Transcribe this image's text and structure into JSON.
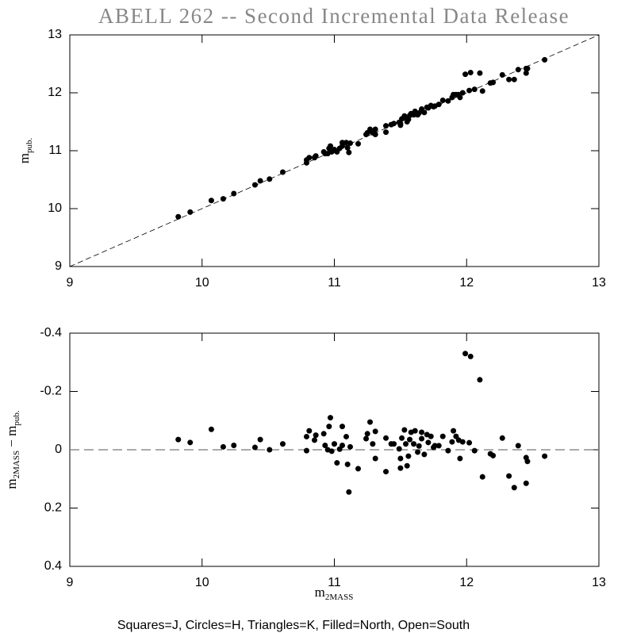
{
  "chart_data": [
    {
      "type": "scatter",
      "title": "ABELL 262 -- Second Incremental Data Release",
      "y_label": [
        "m",
        "pub."
      ],
      "xlim": [
        9,
        13
      ],
      "xticks": [
        9,
        10,
        11,
        12,
        13
      ],
      "ylim": [
        9,
        13
      ],
      "yticks": [
        9,
        10,
        11,
        12,
        13
      ],
      "color": "#000000",
      "reference_line": {
        "x": [
          9,
          13
        ],
        "y": [
          9,
          13
        ]
      },
      "x": [
        9.82,
        9.91,
        10.07,
        10.16,
        10.24,
        10.4,
        10.44,
        10.51,
        10.61,
        10.79,
        10.79,
        10.81,
        10.85,
        10.86,
        10.92,
        10.93,
        10.95,
        10.96,
        10.97,
        10.98,
        11.0,
        11.02,
        11.04,
        11.06,
        11.06,
        11.09,
        11.1,
        11.11,
        11.12,
        11.18,
        11.24,
        11.25,
        11.27,
        11.29,
        11.31,
        11.31,
        11.39,
        11.39,
        11.43,
        11.45,
        11.49,
        11.5,
        11.5,
        11.51,
        11.53,
        11.54,
        11.55,
        11.56,
        11.57,
        11.58,
        11.6,
        11.61,
        11.63,
        11.64,
        11.66,
        11.66,
        11.68,
        11.7,
        11.71,
        11.73,
        11.75,
        11.76,
        11.79,
        11.82,
        11.86,
        11.89,
        11.9,
        11.92,
        11.94,
        11.95,
        11.97,
        11.99,
        12.02,
        12.03,
        12.06,
        12.1,
        12.12,
        12.18,
        12.2,
        12.27,
        12.32,
        12.36,
        12.39,
        12.45,
        12.46,
        12.45,
        12.59
      ],
      "values": [
        9.86,
        9.94,
        10.14,
        10.17,
        10.26,
        10.41,
        10.48,
        10.51,
        10.63,
        10.79,
        10.84,
        10.88,
        10.88,
        10.91,
        10.98,
        10.95,
        10.95,
        11.04,
        11.08,
        10.98,
        11.02,
        10.98,
        11.04,
        11.08,
        11.14,
        11.14,
        11.05,
        10.97,
        11.13,
        11.12,
        11.28,
        11.31,
        11.37,
        11.31,
        11.37,
        11.28,
        11.43,
        11.32,
        11.45,
        11.47,
        11.49,
        11.47,
        11.44,
        11.55,
        11.6,
        11.56,
        11.5,
        11.54,
        11.61,
        11.64,
        11.62,
        11.68,
        11.62,
        11.65,
        11.7,
        11.72,
        11.66,
        11.75,
        11.74,
        11.78,
        11.76,
        11.77,
        11.8,
        11.87,
        11.86,
        11.92,
        11.97,
        11.97,
        11.97,
        11.92,
        12.0,
        12.32,
        12.04,
        12.35,
        12.06,
        12.34,
        12.03,
        12.17,
        12.18,
        12.31,
        12.23,
        12.23,
        12.4,
        12.42,
        12.42,
        12.34,
        12.57
      ]
    },
    {
      "type": "scatter",
      "y_label": [
        "m",
        "2MASS",
        " − m",
        "pub."
      ],
      "x_label": [
        "m",
        "2MASS"
      ],
      "xlim": [
        9,
        13
      ],
      "xticks": [
        9,
        10,
        11,
        12,
        13
      ],
      "ylim": [
        0.4,
        -0.4
      ],
      "yticks": [
        -0.4,
        -0.2,
        0,
        0.2,
        0.4
      ],
      "color": "#000000",
      "reference_line": {
        "x": [
          9,
          13
        ],
        "y": [
          0,
          0
        ]
      },
      "x": [
        9.82,
        9.91,
        10.07,
        10.16,
        10.24,
        10.4,
        10.44,
        10.51,
        10.61,
        10.79,
        10.79,
        10.81,
        10.85,
        10.86,
        10.92,
        10.93,
        10.95,
        10.96,
        10.97,
        10.98,
        11.0,
        11.02,
        11.04,
        11.06,
        11.06,
        11.09,
        11.1,
        11.11,
        11.12,
        11.18,
        11.24,
        11.25,
        11.27,
        11.29,
        11.31,
        11.31,
        11.39,
        11.39,
        11.43,
        11.45,
        11.49,
        11.5,
        11.5,
        11.51,
        11.53,
        11.54,
        11.55,
        11.56,
        11.57,
        11.58,
        11.6,
        11.61,
        11.63,
        11.64,
        11.66,
        11.66,
        11.68,
        11.7,
        11.71,
        11.73,
        11.75,
        11.76,
        11.79,
        11.82,
        11.86,
        11.89,
        11.9,
        11.92,
        11.94,
        11.95,
        11.97,
        11.99,
        12.02,
        12.03,
        12.06,
        12.1,
        12.12,
        12.18,
        12.2,
        12.27,
        12.32,
        12.36,
        12.39,
        12.45,
        12.46,
        12.45,
        12.59
      ],
      "values": [
        -0.035,
        -0.025,
        -0.07,
        -0.01,
        -0.015,
        -0.008,
        -0.035,
        0,
        -0.02,
        0.003,
        -0.045,
        -0.065,
        -0.033,
        -0.05,
        -0.055,
        -0.015,
        0,
        -0.08,
        -0.11,
        0.005,
        -0.02,
        0.045,
        -0.002,
        -0.015,
        -0.08,
        -0.045,
        0.05,
        0.145,
        -0.01,
        0.065,
        -0.038,
        -0.055,
        -0.095,
        -0.02,
        -0.063,
        0.03,
        -0.04,
        0.075,
        -0.02,
        -0.02,
        -0.003,
        0.03,
        0.063,
        -0.04,
        -0.068,
        -0.02,
        0.055,
        0.022,
        -0.035,
        -0.06,
        -0.02,
        -0.065,
        0.008,
        -0.013,
        -0.038,
        -0.06,
        0.016,
        -0.052,
        -0.025,
        -0.046,
        -0.008,
        -0.014,
        -0.014,
        -0.046,
        0.003,
        -0.027,
        -0.065,
        -0.046,
        -0.033,
        0.03,
        -0.027,
        -0.33,
        -0.024,
        -0.32,
        0.003,
        -0.24,
        0.093,
        0.014,
        0.02,
        -0.04,
        0.09,
        0.13,
        -0.014,
        0.027,
        0.04,
        0.115,
        0.022
      ]
    }
  ],
  "footer": "Squares=J, Circles=H, Triangles=K, Filled=North, Open=South"
}
